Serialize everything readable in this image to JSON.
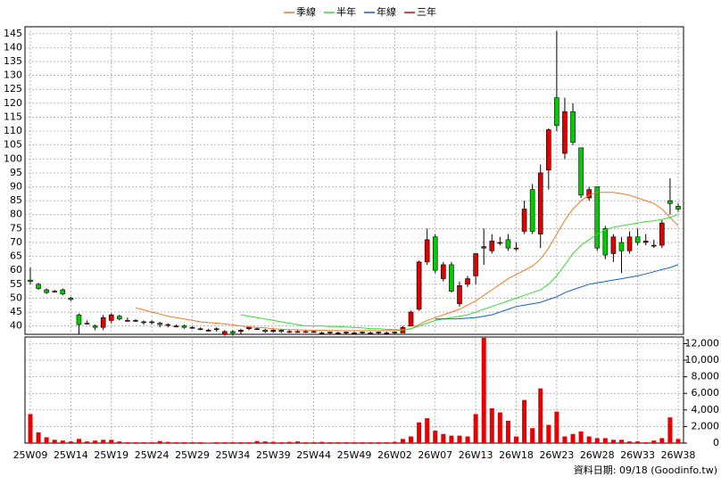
{
  "chart_data": {
    "type": "candlestick",
    "categories": [
      "25W09",
      null,
      null,
      null,
      null,
      "25W14",
      null,
      null,
      null,
      null,
      "25W19",
      null,
      null,
      null,
      null,
      "25W24",
      null,
      null,
      null,
      null,
      "25W29",
      null,
      null,
      null,
      null,
      "25W34",
      null,
      null,
      null,
      null,
      "25W39",
      null,
      null,
      null,
      null,
      "25W44",
      null,
      null,
      null,
      null,
      "25W49",
      null,
      null,
      null,
      null,
      "26W02",
      null,
      null,
      null,
      null,
      "26W07",
      null,
      null,
      null,
      null,
      "26W13",
      null,
      null,
      null,
      null,
      "26W18",
      null,
      null,
      null,
      null,
      "26W23",
      null,
      null,
      null,
      null,
      "26W28",
      null,
      null,
      null,
      null,
      "26W33",
      null,
      null,
      null,
      null,
      "26W38"
    ],
    "open": [
      56.5,
      55,
      53,
      52.5,
      53,
      50,
      44,
      41,
      40,
      39.5,
      42,
      43.5,
      42,
      42,
      41.5,
      41.5,
      41,
      40.5,
      40,
      40,
      39.5,
      39,
      38.5,
      39,
      37,
      38,
      38,
      39,
      39,
      38.5,
      38,
      38.5,
      38,
      38,
      38,
      38,
      37.5,
      37.5,
      37.5,
      37.5,
      37.5,
      37.5,
      37.5,
      37.5,
      37.5,
      37.5,
      37.5,
      40,
      46,
      63,
      72,
      57,
      62,
      48,
      55,
      58,
      68,
      67,
      70,
      71,
      68,
      74,
      89,
      73,
      96,
      122,
      102,
      117,
      104,
      86,
      90,
      75,
      66,
      70,
      67,
      72,
      70,
      69,
      69,
      85,
      83
    ],
    "high": [
      61,
      55.5,
      53.5,
      53,
      53.5,
      50.5,
      44.5,
      42,
      40.5,
      44,
      44.5,
      44,
      43,
      42.5,
      42,
      42,
      41.5,
      41,
      40.5,
      40.5,
      40,
      39.5,
      39,
      39.5,
      38.5,
      38.5,
      39,
      40,
      39.5,
      39,
      39,
      39,
      38.5,
      38.5,
      38.5,
      38.5,
      38,
      38,
      38,
      38,
      38,
      38,
      38,
      38,
      38,
      38,
      40,
      45.5,
      63.5,
      75,
      73,
      63,
      63,
      56,
      58,
      66,
      75,
      73,
      72,
      73,
      70,
      85,
      91,
      98,
      111,
      146,
      122,
      120,
      104,
      90,
      90,
      76,
      73,
      72,
      74,
      75,
      73,
      71,
      78,
      93,
      84
    ],
    "low": [
      55,
      53,
      51.5,
      52,
      51,
      49,
      37,
      40.5,
      38.5,
      38.5,
      41,
      42,
      41.5,
      41.5,
      40.5,
      40.5,
      39.5,
      39.5,
      39.5,
      39,
      39,
      38.5,
      38,
      38,
      36.5,
      36.5,
      37,
      38.5,
      38.5,
      37.5,
      37.5,
      37.5,
      37.5,
      37.5,
      37.5,
      37.5,
      37,
      37,
      37,
      37,
      37,
      37,
      37,
      37,
      37,
      37,
      37.5,
      40,
      45.5,
      62,
      59,
      56,
      52,
      47,
      54,
      55,
      62,
      66,
      69,
      67,
      67,
      73,
      73,
      68,
      89,
      110,
      100,
      105,
      86,
      85,
      67,
      64,
      63,
      59,
      66,
      69,
      69,
      68,
      68,
      80,
      81
    ],
    "close": [
      56,
      53.5,
      52,
      52.5,
      51.5,
      49.5,
      40.5,
      41,
      39.5,
      43,
      44,
      42.5,
      42,
      42,
      41.5,
      41.5,
      40.5,
      40.5,
      40,
      39.5,
      39.5,
      39,
      38.5,
      39,
      38,
      37.5,
      38.5,
      39.5,
      39,
      38,
      38.5,
      38,
      38,
      38,
      38,
      38,
      37.5,
      37.8,
      37.5,
      37.8,
      37.5,
      37.8,
      37.5,
      37.8,
      37.5,
      37.8,
      39.5,
      45,
      63,
      71,
      60,
      62,
      52.5,
      54.5,
      57,
      66,
      68.5,
      70.5,
      70,
      68,
      68,
      82,
      74,
      95,
      110.5,
      112,
      117,
      106,
      87,
      89,
      68,
      65.5,
      72,
      67,
      72,
      70,
      70.5,
      69,
      77,
      84,
      82
    ],
    "up_color": "#e00000",
    "down_color": "#00cc00",
    "ylim": [
      37,
      147.5
    ],
    "yticks": [
      40,
      45,
      50,
      55,
      60,
      65,
      70,
      75,
      80,
      85,
      90,
      95,
      100,
      105,
      110,
      115,
      120,
      125,
      130,
      135,
      140,
      145
    ],
    "series": [
      {
        "name": "季線",
        "color": "#f07820",
        "values": [
          null,
          null,
          null,
          null,
          null,
          null,
          null,
          null,
          null,
          null,
          null,
          null,
          null,
          46.5,
          45.8,
          45,
          44.3,
          43.5,
          43,
          42.5,
          42,
          41.5,
          41.2,
          41,
          40.7,
          40.4,
          40,
          39.7,
          39.5,
          39.3,
          39,
          38.8,
          38.7,
          38.6,
          38.5,
          38.4,
          38.4,
          38.4,
          38.3,
          38.3,
          38.3,
          38.3,
          38.3,
          38.3,
          38.3,
          38.4,
          38.5,
          39,
          40.5,
          42,
          43,
          44,
          45,
          46,
          47.5,
          49,
          51,
          53,
          55,
          57,
          58.5,
          60,
          61.5,
          64,
          68,
          73,
          78,
          82,
          85,
          87,
          88,
          88,
          88,
          87.5,
          87,
          86,
          85,
          84,
          82,
          79,
          76
        ]
      },
      {
        "name": "半年",
        "color": "#33dd33",
        "values": [
          null,
          null,
          null,
          null,
          null,
          null,
          null,
          null,
          null,
          null,
          null,
          null,
          null,
          null,
          null,
          null,
          null,
          null,
          null,
          null,
          null,
          null,
          null,
          null,
          null,
          null,
          44,
          43.5,
          43,
          42.5,
          42,
          41.5,
          41,
          40.5,
          40,
          40,
          40,
          39.8,
          39.8,
          39.6,
          39.5,
          39.3,
          39,
          39,
          38.8,
          38.7,
          38.6,
          39,
          40,
          41,
          42,
          42.5,
          43,
          43.5,
          44,
          45,
          46,
          47,
          48,
          49,
          50,
          51,
          52,
          53,
          55,
          58,
          62,
          66,
          69,
          71,
          73,
          74.5,
          75.5,
          76,
          76.5,
          77,
          77.5,
          77.8,
          78.3,
          79,
          80
        ]
      },
      {
        "name": "年線",
        "color": "#1060d0",
        "values": [
          null,
          null,
          null,
          null,
          null,
          null,
          null,
          null,
          null,
          null,
          null,
          null,
          null,
          null,
          null,
          null,
          null,
          null,
          null,
          null,
          null,
          null,
          null,
          null,
          null,
          null,
          null,
          null,
          null,
          null,
          null,
          null,
          null,
          null,
          null,
          null,
          null,
          null,
          null,
          null,
          null,
          null,
          null,
          null,
          null,
          null,
          null,
          null,
          null,
          null,
          42.5,
          42.5,
          42.5,
          42.6,
          42.8,
          43,
          43.5,
          44,
          45,
          46,
          47,
          47.5,
          48,
          48.5,
          49.5,
          50.5,
          52,
          53,
          54,
          55,
          55.5,
          56,
          56.5,
          57,
          57.5,
          58,
          58.7,
          59.5,
          60.3,
          61,
          62
        ]
      },
      {
        "name": "三年",
        "color": "#e00000",
        "values": [
          null,
          null,
          null,
          null,
          null,
          null,
          null,
          null,
          null,
          null,
          null,
          null,
          null,
          null,
          null,
          null,
          null,
          null,
          null,
          null,
          null,
          null,
          null,
          null,
          null,
          null,
          null,
          null,
          null,
          null,
          null,
          null,
          null,
          null,
          null,
          null,
          null,
          null,
          null,
          null,
          null,
          null,
          null,
          null,
          null,
          null,
          null,
          null,
          null,
          null,
          null,
          null,
          null,
          null,
          null,
          null,
          null,
          null,
          null,
          null,
          null,
          null,
          null,
          null,
          null,
          null,
          null,
          null,
          null,
          null,
          null,
          null,
          null,
          null,
          null,
          null,
          null,
          null,
          null,
          null,
          null
        ]
      }
    ],
    "volume": [
      3500,
      1300,
      700,
      400,
      300,
      200,
      500,
      200,
      300,
      400,
      400,
      200,
      100,
      100,
      100,
      100,
      250,
      150,
      100,
      100,
      100,
      100,
      50,
      100,
      100,
      100,
      100,
      100,
      250,
      200,
      150,
      100,
      150,
      200,
      100,
      100,
      150,
      100,
      100,
      100,
      100,
      100,
      100,
      100,
      100,
      150,
      500,
      800,
      2500,
      3000,
      1500,
      1100,
      900,
      900,
      800,
      3500,
      12700,
      4200,
      3700,
      2700,
      800,
      5200,
      1800,
      6600,
      2200,
      3800,
      800,
      1100,
      1400,
      800,
      600,
      600,
      400,
      400,
      200,
      200,
      100,
      300,
      600,
      3100,
      500
    ],
    "volume_color": "#e80000",
    "y2lim": [
      0,
      12800
    ],
    "y2ticks": [
      0,
      {
        "value": 2000,
        "label": "2,000"
      },
      {
        "value": 4000,
        "label": "4,000"
      },
      {
        "value": 6000,
        "label": "6,000"
      },
      {
        "value": 8000,
        "label": "8,000"
      },
      {
        "value": 10000,
        "label": "10,000"
      },
      {
        "value": 12000,
        "label": "12,000"
      }
    ],
    "grid": true,
    "footnote": "資料日期: 09/18 (Goodinfo.tw)"
  }
}
